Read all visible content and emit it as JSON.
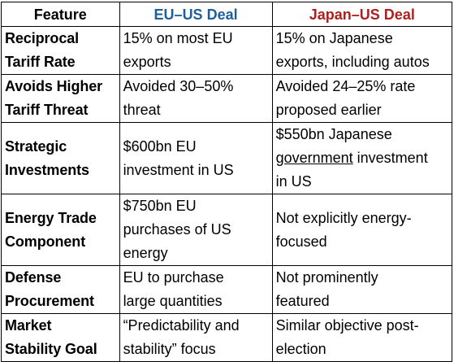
{
  "colors": {
    "eu_header": "#1f5f9a",
    "japan_header": "#b01e1e",
    "grid": "#000000"
  },
  "headers": {
    "feature": "Feature",
    "eu": "EU–US Deal",
    "japan": "Japan–US Deal"
  },
  "rows": [
    {
      "feature": [
        "Reciprocal",
        "Tariff Rate"
      ],
      "eu": [
        "15% on most EU",
        "exports"
      ],
      "japan": [
        "15% on Japanese",
        "exports, including autos"
      ]
    },
    {
      "feature": [
        "Avoids Higher",
        "Tariff Threat"
      ],
      "eu": [
        "Avoided 30–50%",
        "threat"
      ],
      "japan": [
        "Avoided 24–25% rate",
        "proposed earlier"
      ]
    },
    {
      "feature": [
        "Strategic",
        "Investments"
      ],
      "eu": [
        "$600bn EU",
        "investment in US"
      ],
      "japan": [
        "$550bn Japanese",
        "government",
        " investment",
        "in US"
      ]
    },
    {
      "feature": [
        "Energy Trade",
        "Component"
      ],
      "eu": [
        "$750bn EU",
        "purchases of US",
        "energy"
      ],
      "japan": [
        "Not explicitly energy-",
        "focused"
      ]
    },
    {
      "feature": [
        "Defense",
        "Procurement"
      ],
      "eu": [
        "EU to purchase",
        "large quantities"
      ],
      "japan": [
        "Not prominently",
        "featured"
      ]
    },
    {
      "feature": [
        "Market",
        "Stability Goal"
      ],
      "eu": [
        "“Predictability and",
        "stability” focus"
      ],
      "japan": [
        "Similar objective post-",
        "election"
      ]
    }
  ]
}
